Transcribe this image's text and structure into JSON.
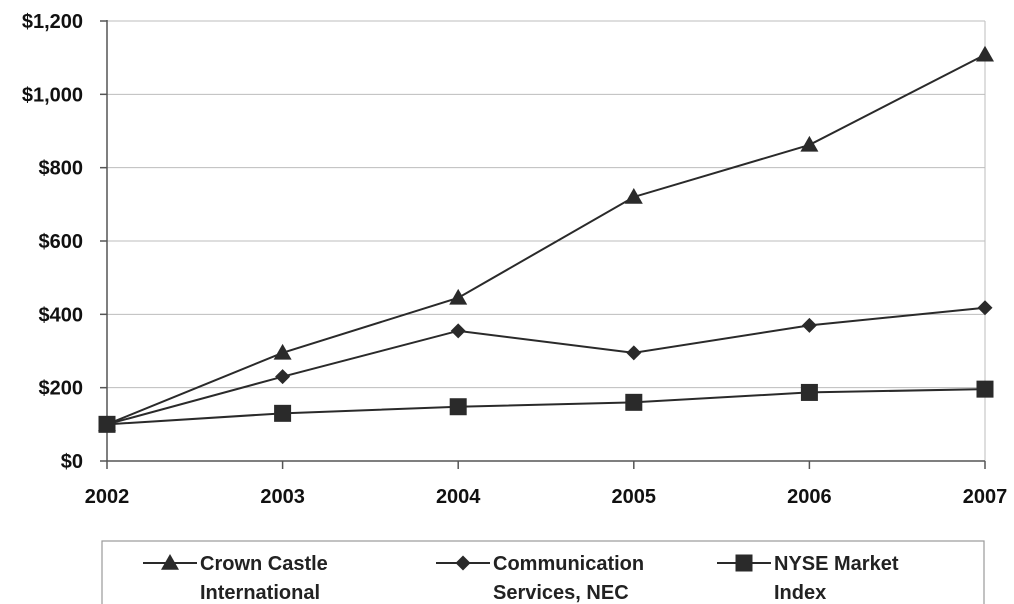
{
  "chart_data": {
    "type": "line",
    "title": "",
    "xlabel": "",
    "ylabel": "",
    "x": [
      "2002",
      "2003",
      "2004",
      "2005",
      "2006",
      "2007"
    ],
    "ylim": [
      0,
      1200
    ],
    "yticks": [
      {
        "value": 0,
        "label": "$0"
      },
      {
        "value": 200,
        "label": "$200"
      },
      {
        "value": 400,
        "label": "$400"
      },
      {
        "value": 600,
        "label": "$600"
      },
      {
        "value": 800,
        "label": "$800"
      },
      {
        "value": 1000,
        "label": "$1,000"
      },
      {
        "value": 1200,
        "label": "$1,200"
      }
    ],
    "grid": true,
    "legend_position": "bottom",
    "series": [
      {
        "name_lines": [
          "Crown Castle",
          "International"
        ],
        "marker": "triangle",
        "values": [
          100,
          295,
          445,
          720,
          862,
          1108
        ]
      },
      {
        "name_lines": [
          "Communication",
          "Services, NEC"
        ],
        "marker": "diamond",
        "values": [
          100,
          230,
          355,
          295,
          370,
          418
        ]
      },
      {
        "name_lines": [
          "NYSE Market",
          "Index"
        ],
        "marker": "square",
        "values": [
          100,
          130,
          148,
          160,
          187,
          196
        ]
      }
    ],
    "colors": {
      "line": "#2a2a2a",
      "grid": "#bdbdbd",
      "axis": "#555555",
      "text": "#111111"
    }
  }
}
